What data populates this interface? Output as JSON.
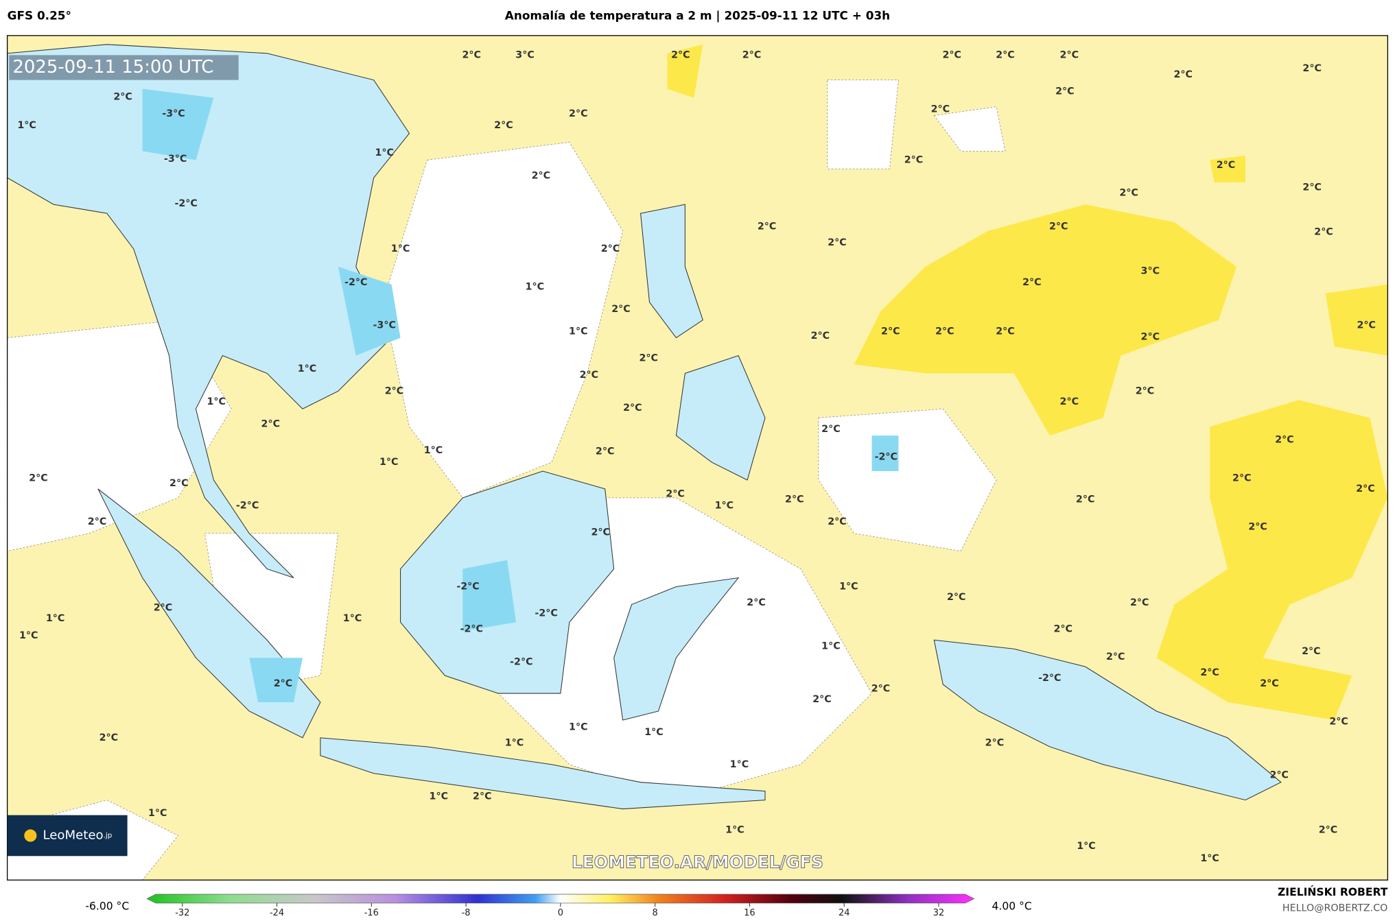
{
  "header": {
    "model": "GFS 0.25°",
    "title": "Anomalía de temperatura a 2 m | 2025-09-11 12 UTC + 03h"
  },
  "map": {
    "timestamp": "2025-09-11 15:00 UTC",
    "logo": "LeoMeteo",
    "logo_suffix": ".jp",
    "watermark": "LEOMETEO.AR/MODEL/GFS",
    "contour_labels": [
      "2°C",
      "3°C",
      "2°C",
      "2°C",
      "2°C",
      "2°C",
      "2°C",
      "2°C",
      "2°C",
      "2°C",
      "2°C",
      "2°C",
      "-3°C",
      "1°C",
      "2°C",
      "2°C",
      "1°C",
      "-3°C",
      "2°C",
      "2°C",
      "2°C",
      "2°C",
      "2°C",
      "-2°C",
      "2°C",
      "2°C",
      "2°C",
      "2°C",
      "1°C",
      "2°C",
      "3°C",
      "2°C",
      "1°C",
      "2°C",
      "2°C",
      "1°C",
      "2°C",
      "2°C",
      "2°C",
      "2°C",
      "2°C",
      "2°C",
      "2°C",
      "2°C",
      "2°C",
      "1°C",
      "2°C",
      "2°C",
      "2°C",
      "2°C",
      "2°C",
      "1°C",
      "2°C",
      "1°C",
      "-2°C",
      "2°C",
      "2°C",
      "2°C",
      "2°C",
      "2°C",
      "2°C",
      "1°C",
      "2°C",
      "2°C",
      "2°C",
      "2°C",
      "2°C",
      "1°C",
      "2°C",
      "2°C",
      "2°C",
      "2°C",
      "1°C",
      "1°C",
      "1°C",
      "2°C",
      "1°C",
      "2°C",
      "2°C",
      "2°C",
      "2°C",
      "2°C",
      "2°C",
      "2°C",
      "2°C",
      "2°C",
      "1°C",
      "1°C",
      "1°C",
      "2°C",
      "1°C",
      "2°C",
      "1°C",
      "2°C",
      "1°C",
      "1°C",
      "2°C",
      "1°C",
      "1°C",
      "-2°C",
      "-2°C",
      "-2°C",
      "-2°C",
      "-2°C",
      "-2°C",
      "-2°C",
      "-3°C",
      "1°C"
    ]
  },
  "colorbar": {
    "min_label": "-6.00 °C",
    "max_label": "4.00 °C",
    "range": [
      -35,
      35
    ],
    "ticks": [
      -32,
      -24,
      -16,
      -8,
      0,
      8,
      16,
      24,
      32
    ]
  },
  "footer": {
    "author": "ZIELIŃSKI ROBERT",
    "email": "HELLO@ROBERTZ.CO"
  }
}
